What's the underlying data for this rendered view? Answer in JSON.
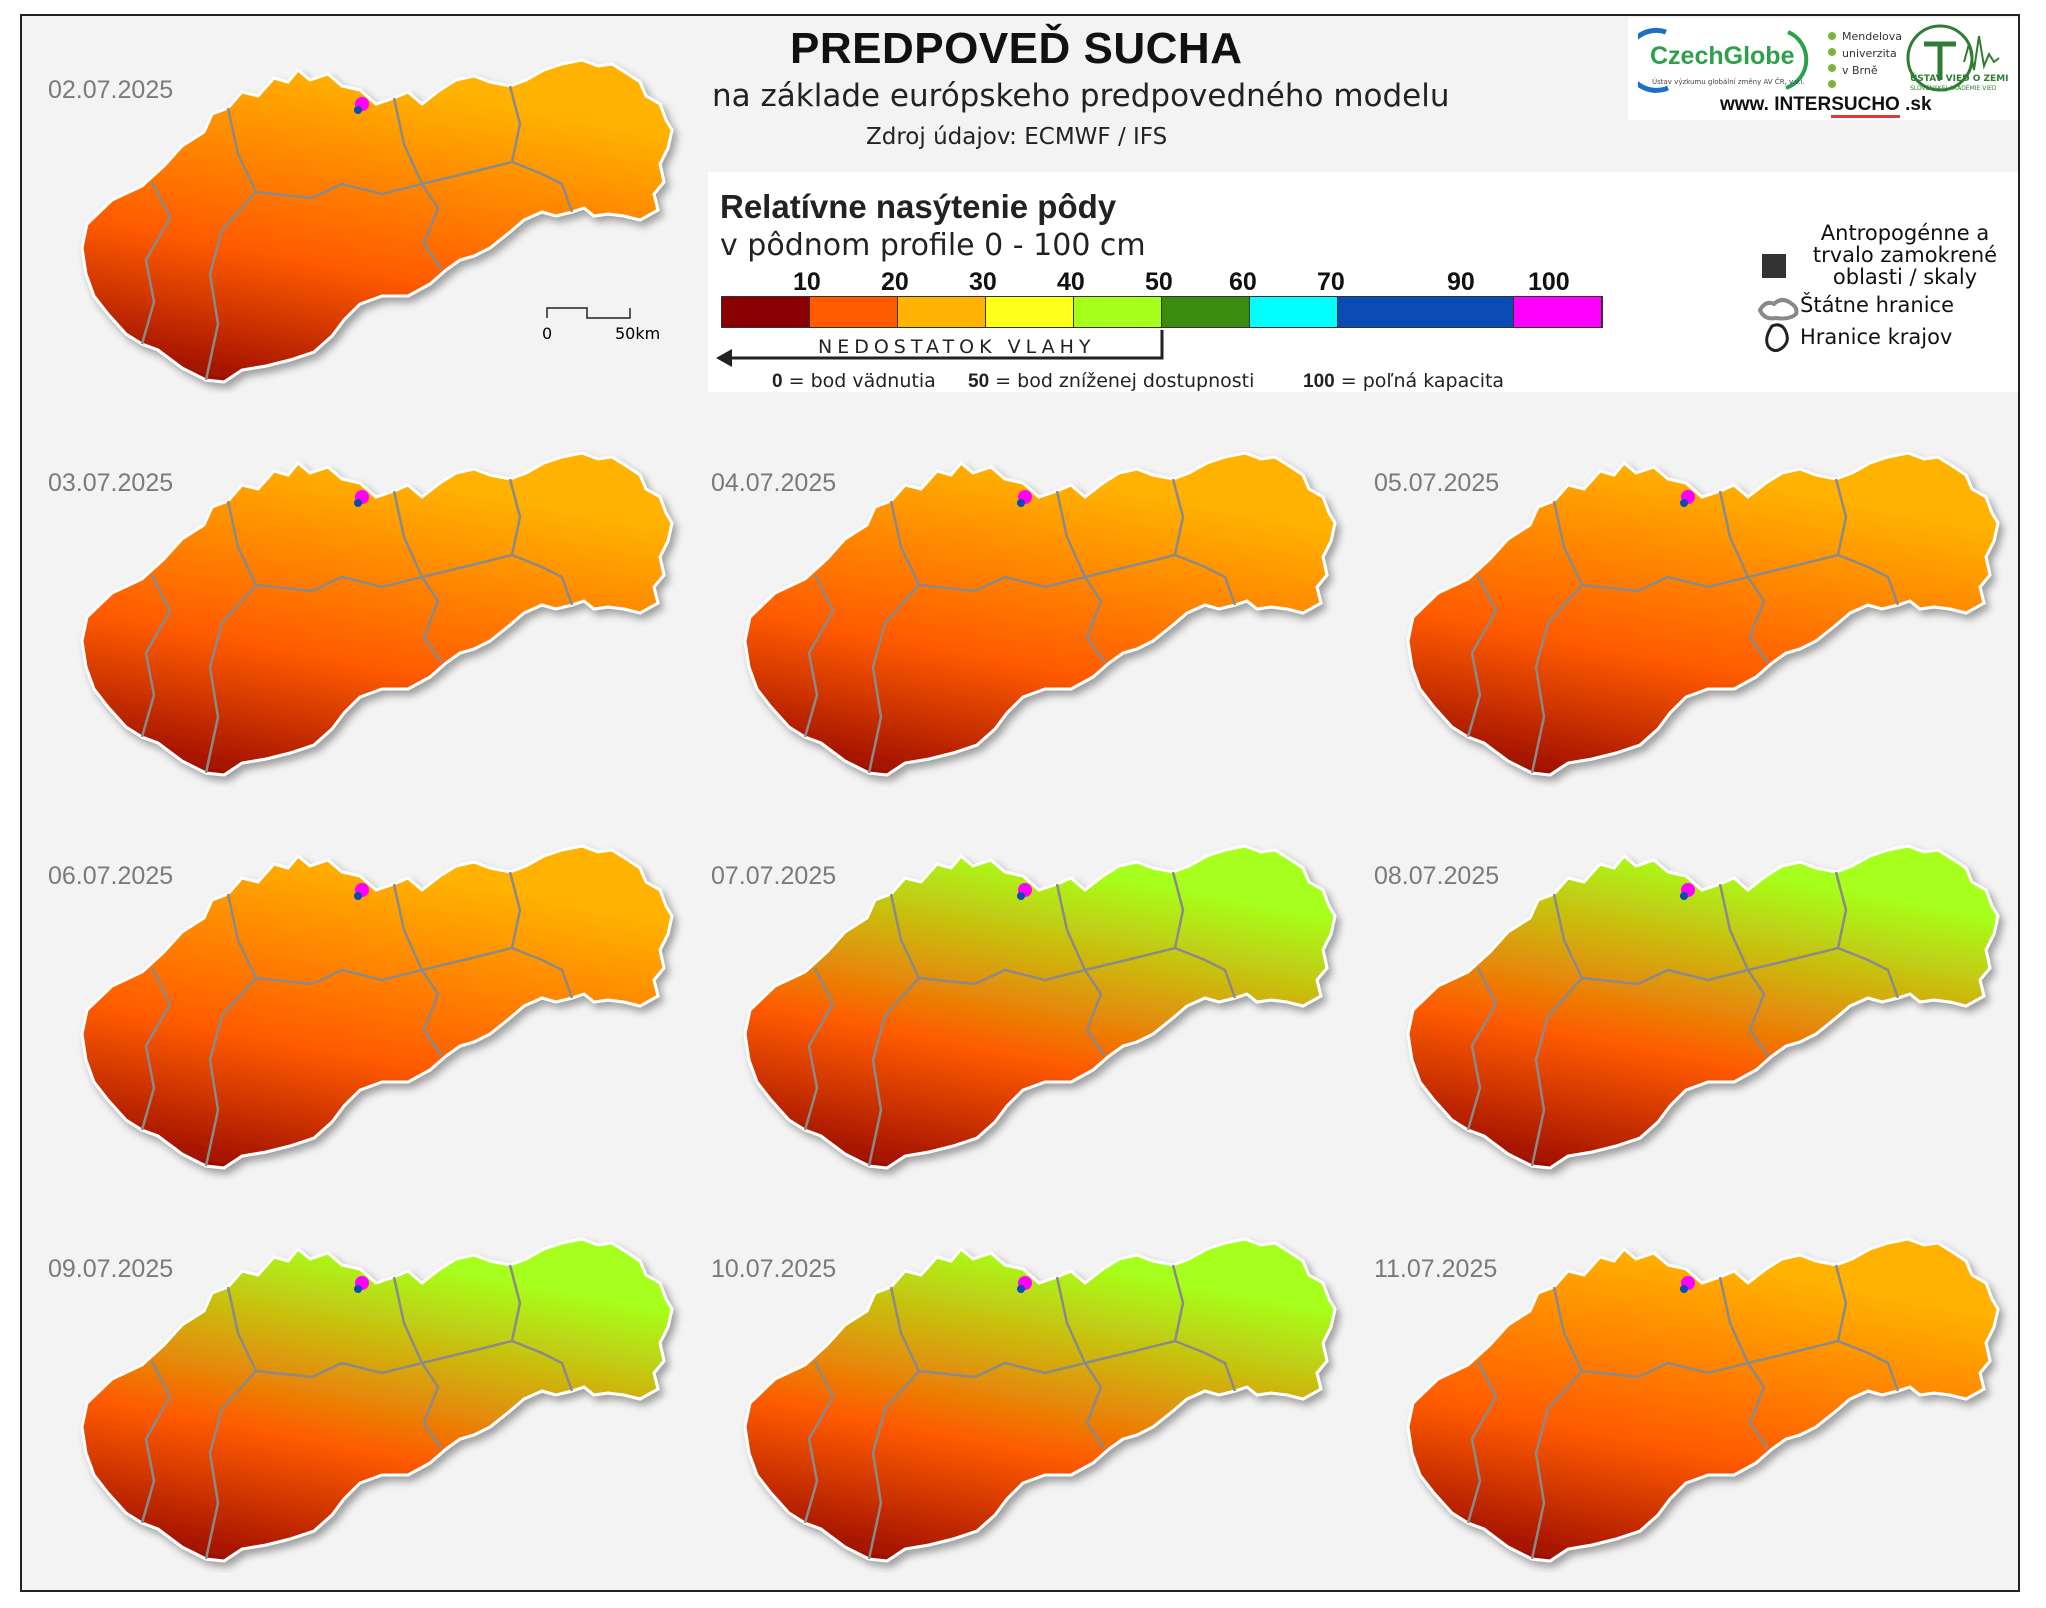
{
  "header": {
    "title": "PREDPOVEĎ SUCHA",
    "subtitle": "na základe európskeho predpovedného modelu",
    "source": "Zdroj údajov: ECMWF / IFS"
  },
  "logos": {
    "czechglobe": "CzechGlobe",
    "czechglobe_tagline": "Ústav výzkumu globální změny AV ČR, v.v.i.",
    "mendel": "Mendelova univerzita v Brně",
    "ustav": "ÚSTAV VIED O ZEMI",
    "ustav_sub": "SLOVENSKEJ AKADÉMIE VIED",
    "website_prefix": "www. INTER",
    "website_highlight": "SUCHO",
    "website_suffix": " .sk"
  },
  "legend": {
    "title": "Relatívne nasýtenie pôdy",
    "subtitle": "v pôdnom profile 0 - 100 cm",
    "ticks": [
      "10",
      "20",
      "30",
      "40",
      "50",
      "60",
      "70",
      "90",
      "100"
    ],
    "classes": [
      {
        "from": 0,
        "to": 10,
        "color": "#8b0000"
      },
      {
        "from": 10,
        "to": 20,
        "color": "#ff5a00"
      },
      {
        "from": 20,
        "to": 30,
        "color": "#ffb300"
      },
      {
        "from": 30,
        "to": 40,
        "color": "#ffff1a"
      },
      {
        "from": 40,
        "to": 50,
        "color": "#a6ff1a"
      },
      {
        "from": 50,
        "to": 60,
        "color": "#3a8c0f"
      },
      {
        "from": 60,
        "to": 70,
        "color": "#00ffff"
      },
      {
        "from": 70,
        "to": 90,
        "color": "#0a4bb4"
      },
      {
        "from": 90,
        "to": 100,
        "color": "#ff00ff"
      }
    ],
    "deficit_label": "NEDOSTATOK VLAHY",
    "def0_value": "0",
    "def0_text": " = bod vädnutia",
    "def50_value": "50",
    "def50_text": " = bod zníženej dostupnosti",
    "def100_value": "100",
    "def100_text": " = poľná kapacita",
    "anthro": "Antropogénne a trvalo zamokrené oblasti / skaly",
    "anthro_color": "#333333",
    "state_border": "Štátne hranice",
    "region_border": "Hranice krajov"
  },
  "scale_bar": {
    "zero": "0",
    "fifty": "50km"
  },
  "maps": [
    {
      "date": "02.07.2025",
      "profile": [
        "#8b0000",
        "#ff5a00",
        "#ffb300"
      ]
    },
    {
      "date": "03.07.2025",
      "profile": [
        "#8b0000",
        "#ff5a00",
        "#ffb300"
      ]
    },
    {
      "date": "04.07.2025",
      "profile": [
        "#8b0000",
        "#ff5a00",
        "#ffb300"
      ]
    },
    {
      "date": "05.07.2025",
      "profile": [
        "#8b0000",
        "#ff5a00",
        "#ffb300"
      ]
    },
    {
      "date": "06.07.2025",
      "profile": [
        "#8b0000",
        "#ff5a00",
        "#ffb300"
      ]
    },
    {
      "date": "07.07.2025",
      "profile": [
        "#8b0000",
        "#ff5a00",
        "#a6ff1a"
      ]
    },
    {
      "date": "08.07.2025",
      "profile": [
        "#8b0000",
        "#ff5a00",
        "#a6ff1a"
      ]
    },
    {
      "date": "09.07.2025",
      "profile": [
        "#8b0000",
        "#ff5a00",
        "#a6ff1a"
      ]
    },
    {
      "date": "10.07.2025",
      "profile": [
        "#8b0000",
        "#ff5a00",
        "#a6ff1a"
      ]
    },
    {
      "date": "11.07.2025",
      "profile": [
        "#8b0000",
        "#ff5a00",
        "#ffb300"
      ]
    }
  ]
}
